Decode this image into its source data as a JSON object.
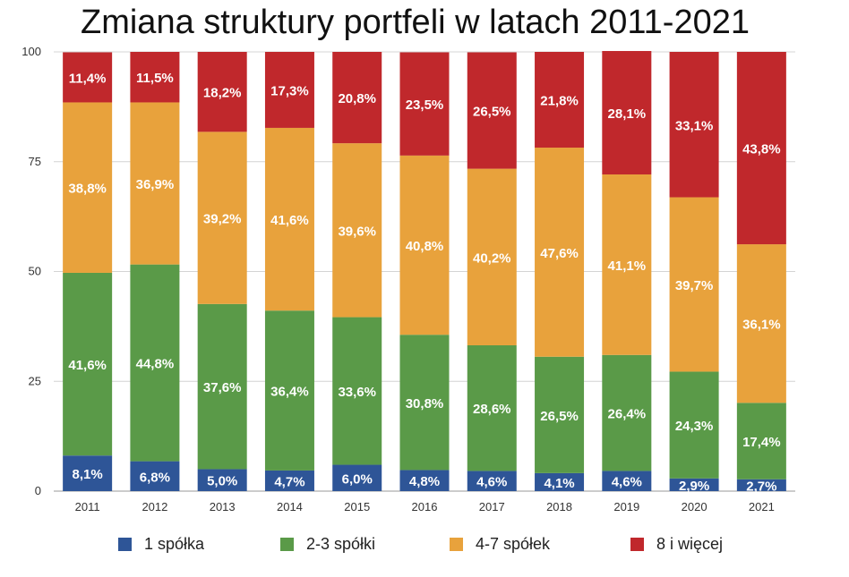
{
  "chart_data": {
    "type": "bar",
    "stacked": true,
    "title": "Zmiana struktury portfeli w latach 2011-2021",
    "categories": [
      "2011",
      "2012",
      "2013",
      "2014",
      "2015",
      "2016",
      "2017",
      "2018",
      "2019",
      "2020",
      "2021"
    ],
    "ylim": [
      0,
      100
    ],
    "yticks": [
      "0",
      "25",
      "50",
      "75",
      "100"
    ],
    "grid": true,
    "legend_position": "bottom",
    "series": [
      {
        "name": "1 spółka",
        "color": "#2e5597",
        "values": [
          8.1,
          6.8,
          5.0,
          4.7,
          6.0,
          4.8,
          4.6,
          4.1,
          4.6,
          2.9,
          2.7
        ],
        "labels": [
          "8,1%",
          "6,8%",
          "5,0%",
          "4,7%",
          "6,0%",
          "4,8%",
          "4,6%",
          "4,1%",
          "4,6%",
          "2,9%",
          "2,7%"
        ]
      },
      {
        "name": "2-3 spółki",
        "color": "#5a9a48",
        "values": [
          41.6,
          44.8,
          37.6,
          36.4,
          33.6,
          30.8,
          28.6,
          26.5,
          26.4,
          24.3,
          17.4
        ],
        "labels": [
          "41,6%",
          "44,8%",
          "37,6%",
          "36,4%",
          "33,6%",
          "30,8%",
          "28,6%",
          "26,5%",
          "26,4%",
          "24,3%",
          "17,4%"
        ]
      },
      {
        "name": "4-7 spółek",
        "color": "#e8a23c",
        "values": [
          38.8,
          36.9,
          39.2,
          41.6,
          39.6,
          40.8,
          40.2,
          47.6,
          41.1,
          39.7,
          36.1
        ],
        "labels": [
          "38,8%",
          "36,9%",
          "39,2%",
          "41,6%",
          "39,6%",
          "40,8%",
          "40,2%",
          "47,6%",
          "41,1%",
          "39,7%",
          "36,1%"
        ]
      },
      {
        "name": "8 i więcej",
        "color": "#c0282c",
        "values": [
          11.4,
          11.5,
          18.2,
          17.3,
          20.8,
          23.5,
          26.5,
          21.8,
          28.1,
          33.1,
          43.8
        ],
        "labels": [
          "11,4%",
          "11,5%",
          "18,2%",
          "17,3%",
          "20,8%",
          "23,5%",
          "26,5%",
          "21,8%",
          "28,1%",
          "33,1%",
          "43,8%"
        ]
      }
    ]
  }
}
